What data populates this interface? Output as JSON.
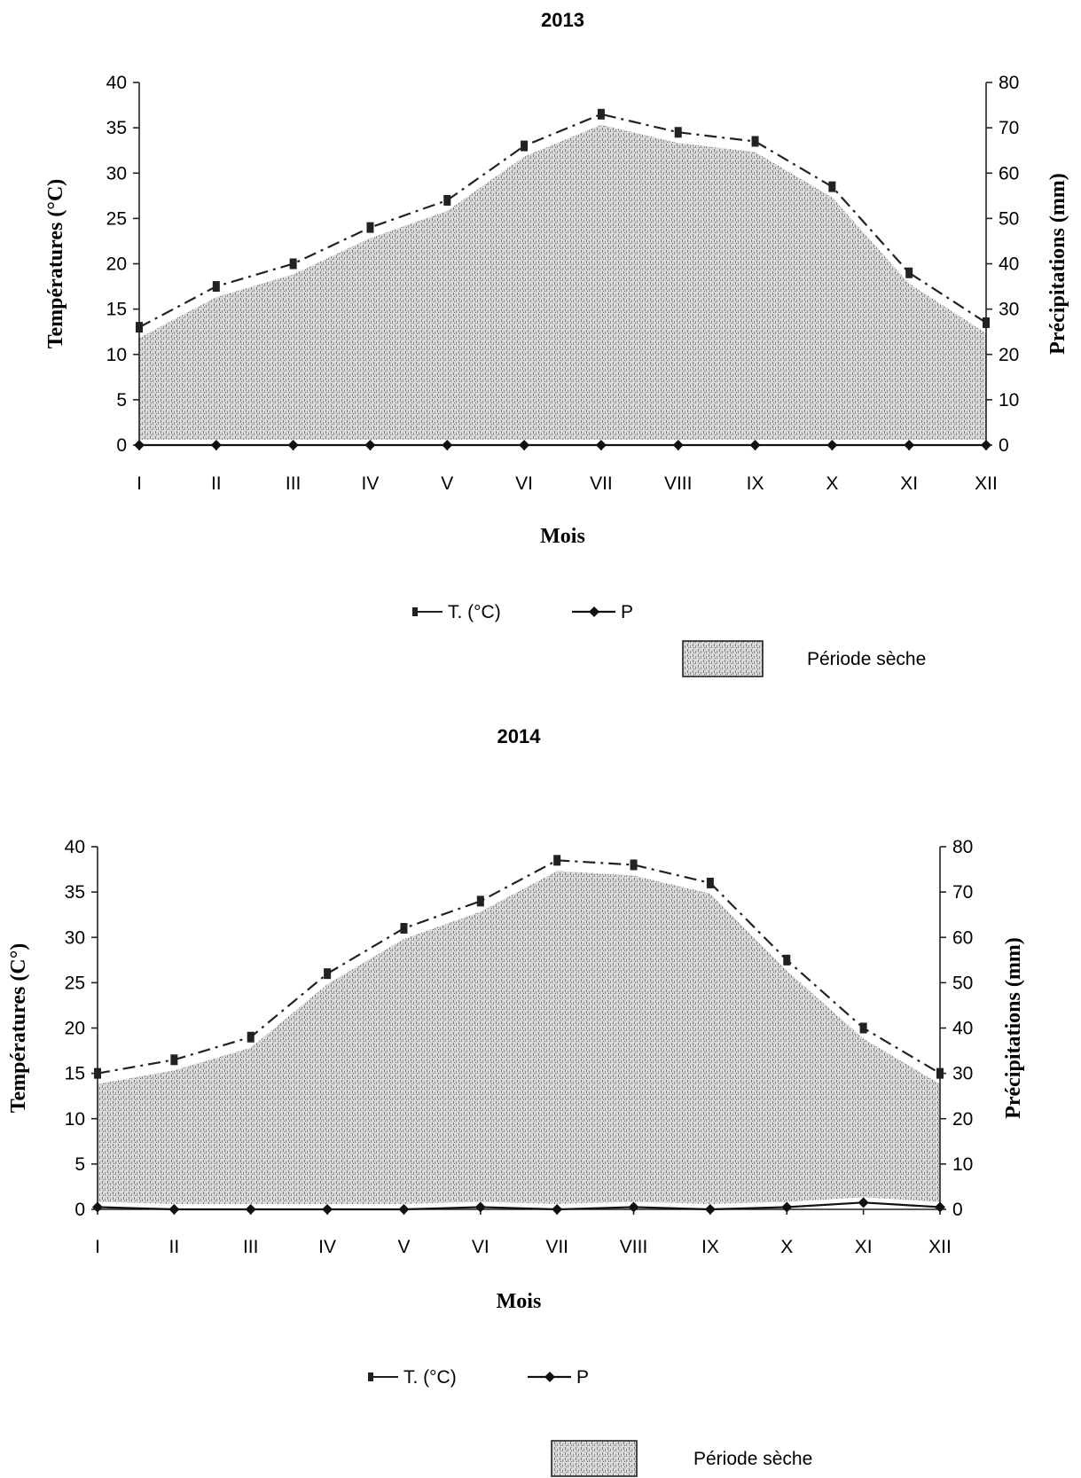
{
  "chart_data": [
    {
      "type": "line",
      "title": "2013",
      "xlabel": "Mois",
      "ylabel": "Températures (°C)",
      "y2label": "Précipitations (mm)",
      "categories": [
        "I",
        "II",
        "III",
        "IV",
        "V",
        "VI",
        "VII",
        "VIII",
        "IX",
        "X",
        "XI",
        "XII"
      ],
      "ylim": [
        0,
        40
      ],
      "y2lim": [
        0,
        80
      ],
      "yticks": [
        0,
        5,
        10,
        15,
        20,
        25,
        30,
        35,
        40
      ],
      "y2ticks": [
        0,
        10,
        20,
        30,
        40,
        50,
        60,
        70,
        80
      ],
      "series": [
        {
          "name": "T. (°C)",
          "axis": "left",
          "values": [
            13,
            17.5,
            20,
            24,
            27,
            33,
            36.5,
            34.5,
            33.5,
            28.5,
            19,
            13.5
          ]
        },
        {
          "name": "P",
          "axis": "right",
          "values": [
            0,
            0,
            0,
            0,
            0,
            0,
            0,
            0,
            0,
            0,
            0,
            0
          ]
        }
      ],
      "legend_area_label": "Période sèche",
      "dry_period": [
        "I",
        "XII"
      ],
      "grid": false,
      "legend": "bottom"
    },
    {
      "type": "line",
      "title": "2014",
      "xlabel": "Mois",
      "ylabel": "Températures    (C°)",
      "y2label": "Précipitations (mm)",
      "categories": [
        "I",
        "II",
        "III",
        "IV",
        "V",
        "VI",
        "VII",
        "VIII",
        "IX",
        "X",
        "XI",
        "XII"
      ],
      "ylim": [
        0,
        40
      ],
      "y2lim": [
        0,
        80
      ],
      "yticks": [
        0,
        5,
        10,
        15,
        20,
        25,
        30,
        35,
        40
      ],
      "y2ticks": [
        0,
        10,
        20,
        30,
        40,
        50,
        60,
        70,
        80
      ],
      "series": [
        {
          "name": "T. (°C)",
          "axis": "left",
          "values": [
            15,
            16.5,
            19,
            26,
            31,
            34,
            38.5,
            38,
            36,
            27.5,
            20,
            15
          ]
        },
        {
          "name": "P",
          "axis": "right",
          "values": [
            0.5,
            0,
            0,
            0,
            0,
            0.5,
            0,
            0.5,
            0,
            0.5,
            1.5,
            0.5
          ]
        }
      ],
      "legend_area_label": "Période sèche",
      "dry_period": [
        "I",
        "XII"
      ],
      "grid": false,
      "legend": "bottom"
    }
  ]
}
